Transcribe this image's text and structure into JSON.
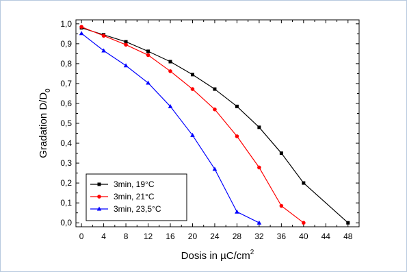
{
  "chart_data": {
    "type": "line",
    "xlabel": "Dosis in µC/cm",
    "xlabel_sup": "2",
    "ylabel": "Gradation D/D",
    "ylabel_sub": "0",
    "xlim": [
      -1,
      50
    ],
    "ylim": [
      -0.02,
      1.02
    ],
    "xticks": [
      0,
      4,
      8,
      12,
      16,
      20,
      24,
      28,
      32,
      36,
      40,
      44,
      48
    ],
    "yticks": [
      0.0,
      0.1,
      0.2,
      0.3,
      0.4,
      0.5,
      0.6,
      0.7,
      0.8,
      0.9,
      1.0
    ],
    "ytick_labels": [
      "0,0",
      "0,1",
      "0,2",
      "0,3",
      "0,4",
      "0,5",
      "0,6",
      "0,7",
      "0,8",
      "0,9",
      "1,0"
    ],
    "grid": false,
    "legend_position": "bottom-left",
    "series": [
      {
        "name": "3min, 19°C",
        "color": "#000000",
        "marker": "square",
        "x": [
          0,
          4,
          8,
          12,
          16,
          20,
          24,
          28,
          32,
          36,
          40,
          48
        ],
        "y": [
          0.98,
          0.945,
          0.91,
          0.862,
          0.81,
          0.745,
          0.672,
          0.585,
          0.48,
          0.35,
          0.2,
          0.0
        ]
      },
      {
        "name": "3min, 21°C",
        "color": "#ff0000",
        "marker": "circle",
        "x": [
          0,
          4,
          8,
          12,
          16,
          20,
          24,
          28,
          32,
          36,
          40
        ],
        "y": [
          0.985,
          0.94,
          0.895,
          0.843,
          0.762,
          0.672,
          0.57,
          0.435,
          0.278,
          0.085,
          0.0
        ]
      },
      {
        "name": "3min, 23,5°C",
        "color": "#0000ff",
        "marker": "triangle",
        "x": [
          0,
          4,
          8,
          12,
          16,
          20,
          24,
          28,
          32
        ],
        "y": [
          0.952,
          0.865,
          0.79,
          0.703,
          0.585,
          0.44,
          0.27,
          0.055,
          0.0
        ]
      }
    ]
  }
}
